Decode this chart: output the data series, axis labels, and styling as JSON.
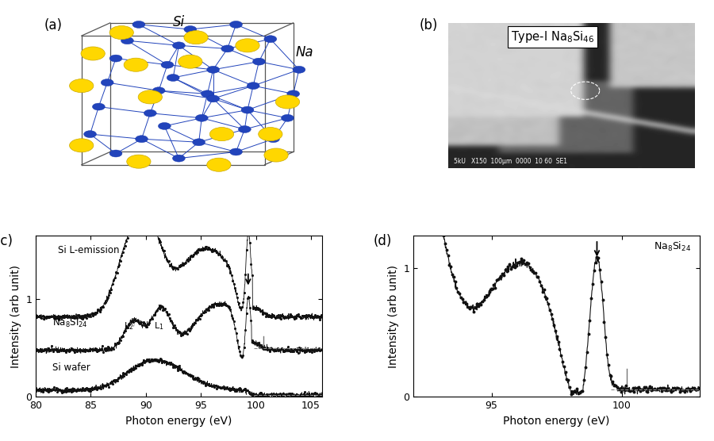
{
  "xlabel": "Photon energy (eV)",
  "ylabel": "Intensity (arb unit)",
  "xlim_c": [
    80,
    106
  ],
  "xlim_d": [
    92,
    103
  ],
  "ylim_c": [
    0,
    1.65
  ],
  "ylim_d": [
    0,
    1.25
  ],
  "xticks_c": [
    80,
    85,
    90,
    95,
    100,
    105
  ],
  "xticks_d": [
    95,
    100
  ],
  "yticks_c": [
    0,
    1
  ],
  "yticks_d": [
    0,
    1
  ],
  "bg_color": "#ffffff",
  "line_color": "#111111"
}
